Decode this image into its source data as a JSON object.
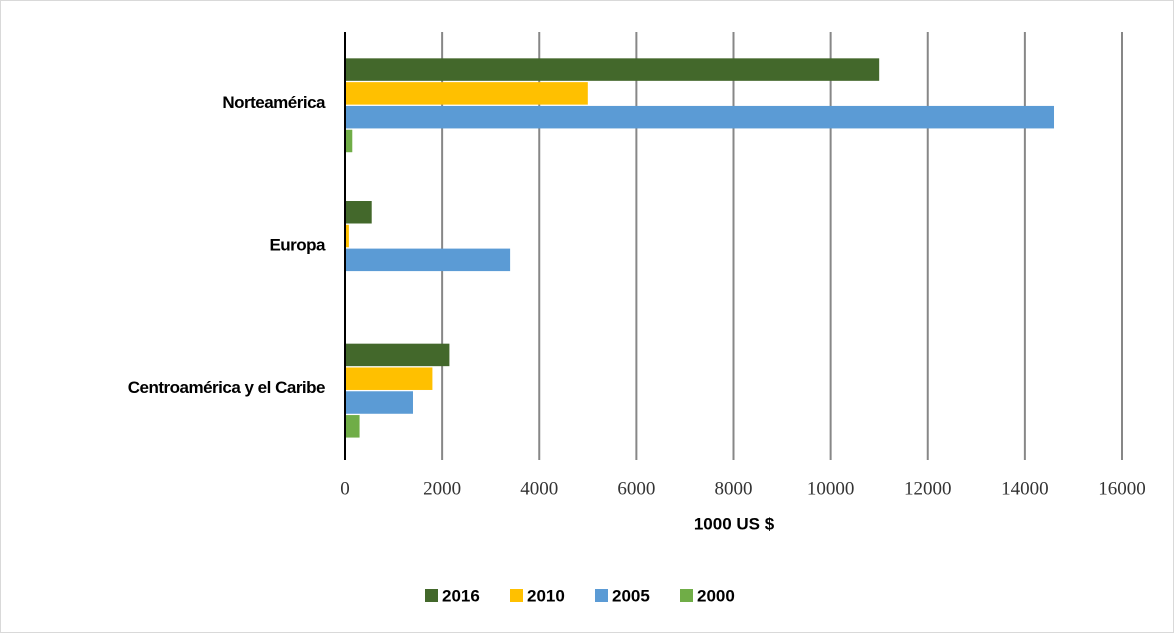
{
  "chart_data": {
    "type": "bar",
    "orientation": "horizontal",
    "categories": [
      "Norteamérica",
      "Europa",
      "Centroamérica y el Caribe"
    ],
    "series": [
      {
        "name": "2016",
        "color": "#43682b",
        "values": [
          11000,
          550,
          2150
        ]
      },
      {
        "name": "2010",
        "color": "#ffc000",
        "values": [
          5000,
          80,
          1800
        ]
      },
      {
        "name": "2005",
        "color": "#5b9bd5",
        "values": [
          14600,
          3400,
          1400
        ]
      },
      {
        "name": "2000",
        "color": "#70ad47",
        "values": [
          150,
          0,
          300
        ]
      }
    ],
    "x_label": "1000 US $",
    "xlim": [
      0,
      16000
    ],
    "xticks": [
      0,
      2000,
      4000,
      6000,
      8000,
      10000,
      12000,
      14000,
      16000
    ],
    "grid": true,
    "legend": "bottom"
  }
}
